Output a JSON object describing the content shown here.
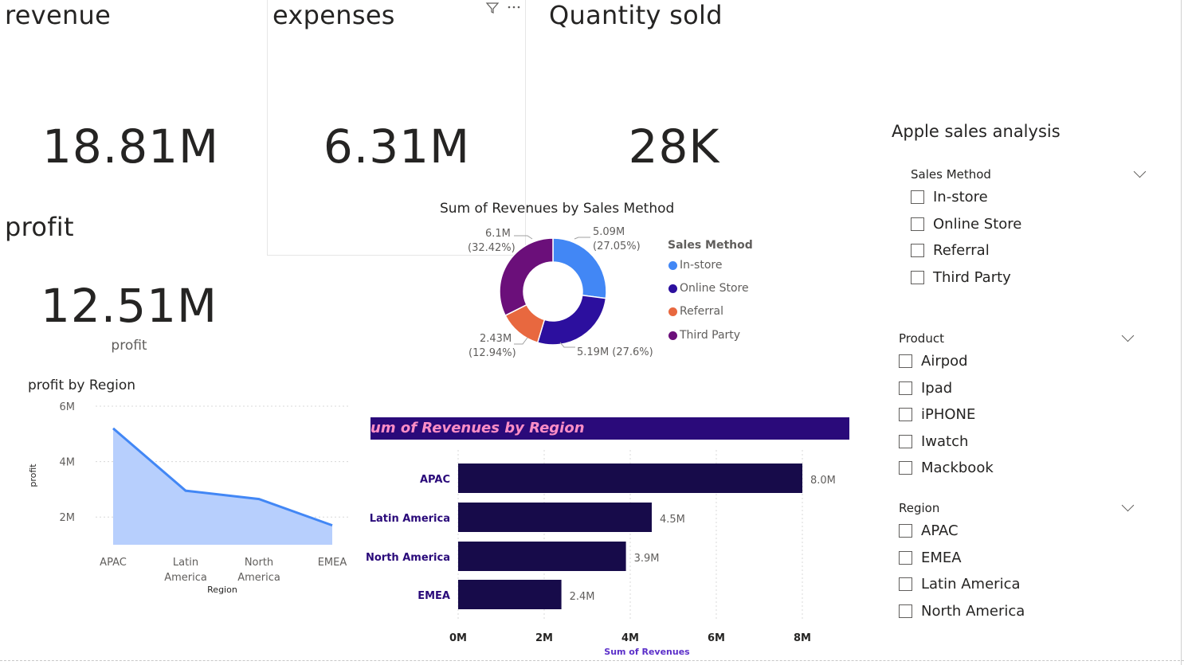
{
  "cards": {
    "revenue": {
      "title": "revenue",
      "value": "18.81M"
    },
    "expenses": {
      "title": "expenses",
      "value": "6.31M"
    },
    "quantity": {
      "title": "Quantity sold",
      "value": "28K"
    },
    "profit": {
      "title": "profit",
      "value": "12.51M",
      "label": "profit"
    }
  },
  "header_icons": {
    "filter": "filter-icon",
    "more": "more-options-icon"
  },
  "colors": {
    "in_store": "#4287f5",
    "online_store": "#2c0f9e",
    "referral": "#e8683f",
    "third_party": "#6b0f7a",
    "area_fill": "#b7cffd",
    "area_line": "#4287f5",
    "bar": "#170b4a",
    "bar_title_bg": "#2a0a7a",
    "bar_title_text": "#ff8ec6",
    "axis_title": "#5b2fc9"
  },
  "donut": {
    "title": "Sum of Revenues by Sales Method",
    "legend_title": "Sales Method",
    "legend": [
      "In-store",
      "Online Store",
      "Referral",
      "Third Party"
    ],
    "labels": {
      "in_store": [
        "5.09M",
        "(27.05%)"
      ],
      "online_store": "5.19M (27.6%)",
      "referral": [
        "2.43M",
        "(12.94%)"
      ],
      "third_party": [
        "6.1M",
        "(32.42%)"
      ]
    }
  },
  "area_chart": {
    "title": "profit by Region",
    "ylabel": "profit",
    "xlabel": "Region",
    "y_ticks": [
      "6M",
      "4M",
      "2M"
    ],
    "x_labels": [
      [
        "APAC"
      ],
      [
        "Latin",
        "America"
      ],
      [
        "North",
        "America"
      ],
      [
        "EMEA"
      ]
    ]
  },
  "bar_chart": {
    "title": "um of Revenues by Region",
    "xlabel": "Sum of Revenues",
    "categories": [
      "APAC",
      "Latin America",
      "North America",
      "EMEA"
    ],
    "data_labels": [
      "8.0M",
      "4.5M",
      "3.9M",
      "2.4M"
    ],
    "x_ticks": [
      "0M",
      "2M",
      "4M",
      "6M",
      "8M"
    ]
  },
  "slicers": {
    "title": "Apple sales analysis",
    "sales_method": {
      "header": "Sales Method",
      "items": [
        "In-store",
        "Online Store",
        "Referral",
        "Third Party"
      ]
    },
    "product": {
      "header": "Product",
      "items": [
        "Airpod",
        "Ipad",
        "iPHONE",
        "Iwatch",
        "Mackbook"
      ]
    },
    "region": {
      "header": "Region",
      "items": [
        "APAC",
        "EMEA",
        "Latin America",
        "North America"
      ]
    }
  },
  "chart_data": [
    {
      "type": "pie",
      "title": "Sum of Revenues by Sales Method",
      "legend_title": "Sales Method",
      "categories": [
        "In-store",
        "Online Store",
        "Referral",
        "Third Party"
      ],
      "values": [
        5.09,
        5.19,
        2.43,
        6.1
      ],
      "percentages": [
        27.05,
        27.6,
        12.94,
        32.42
      ]
    },
    {
      "type": "area",
      "title": "profit by Region",
      "xlabel": "Region",
      "ylabel": "profit",
      "categories": [
        "APAC",
        "Latin America",
        "North America",
        "EMEA"
      ],
      "values": [
        5.2,
        2.95,
        2.65,
        1.7
      ],
      "ylim": [
        1,
        6
      ]
    },
    {
      "type": "bar",
      "title": "um of Revenues by Region",
      "xlabel": "Sum of Revenues",
      "categories": [
        "APAC",
        "Latin America",
        "North America",
        "EMEA"
      ],
      "values": [
        8.0,
        4.5,
        3.9,
        2.4
      ],
      "xlim": [
        0,
        9
      ]
    }
  ]
}
